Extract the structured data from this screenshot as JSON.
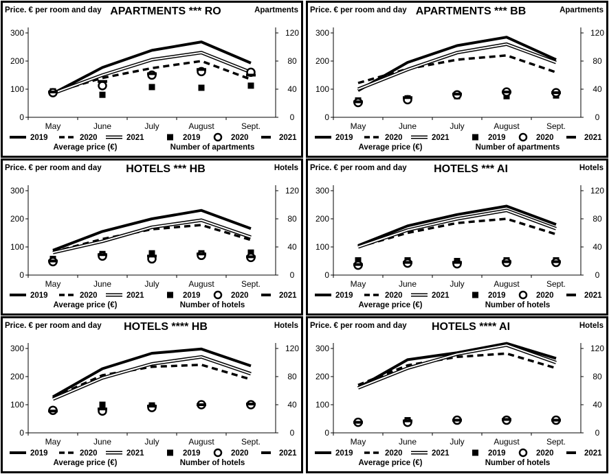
{
  "chart_data": [
    {
      "type": "line",
      "title": "APARTMENTS *** RO",
      "ylabel": "Price. € per room and day",
      "y2label": "Apartments",
      "categories": [
        "May",
        "June",
        "July",
        "August",
        "Sept."
      ],
      "ylim": [
        0,
        300
      ],
      "y2lim": [
        0,
        120
      ],
      "yticks": [
        "0",
        "100",
        "200",
        "300"
      ],
      "y2ticks": [
        "0",
        "40",
        "80",
        "120"
      ],
      "series": [
        {
          "name": "2019",
          "axis": "left",
          "kind": "line",
          "style": "solid-thick",
          "values": [
            85,
            177,
            238,
            268,
            193
          ]
        },
        {
          "name": "2020",
          "axis": "left",
          "kind": "line",
          "style": "dashed",
          "values": [
            88,
            140,
            175,
            200,
            135
          ]
        },
        {
          "name": "2021",
          "axis": "left",
          "kind": "line",
          "style": "double",
          "values": [
            85,
            150,
            205,
            230,
            160
          ]
        },
        {
          "name": "2019",
          "axis": "right",
          "kind": "marker",
          "style": "square",
          "values": [
            37,
            32,
            43,
            42,
            45
          ]
        },
        {
          "name": "2020",
          "axis": "right",
          "kind": "marker",
          "style": "circle",
          "values": [
            35,
            45,
            60,
            65,
            64
          ]
        },
        {
          "name": "2021",
          "axis": "right",
          "kind": "marker",
          "style": "dash",
          "values": [
            36,
            51,
            62,
            68,
            60
          ]
        }
      ],
      "legend": {
        "left_title": "Average price (€)",
        "right_title": "Number of apartments",
        "items": [
          "2019",
          "2020",
          "2021",
          "2019",
          "2020",
          "2021"
        ]
      }
    },
    {
      "type": "line",
      "title": "APARTMENTS *** BB",
      "ylabel": "Price. € per room and day",
      "y2label": "Apartments",
      "categories": [
        "May",
        "June",
        "July",
        "August",
        "Sept."
      ],
      "ylim": [
        0,
        300
      ],
      "y2lim": [
        0,
        120
      ],
      "yticks": [
        "0",
        "100",
        "200",
        "300"
      ],
      "y2ticks": [
        "0",
        "40",
        "80",
        "120"
      ],
      "series": [
        {
          "name": "2019",
          "axis": "left",
          "kind": "line",
          "style": "solid-thick",
          "values": [
            95,
            195,
            255,
            285,
            205
          ]
        },
        {
          "name": "2020",
          "axis": "left",
          "kind": "line",
          "style": "dashed",
          "values": [
            122,
            172,
            205,
            220,
            160
          ]
        },
        {
          "name": "2021",
          "axis": "left",
          "kind": "line",
          "style": "double",
          "values": [
            100,
            170,
            230,
            260,
            195
          ]
        },
        {
          "name": "2019",
          "axis": "right",
          "kind": "marker",
          "style": "square",
          "values": [
            24,
            27,
            30,
            30,
            31
          ]
        },
        {
          "name": "2020",
          "axis": "right",
          "kind": "marker",
          "style": "circle",
          "values": [
            21,
            25,
            32,
            36,
            35
          ]
        },
        {
          "name": "2021",
          "axis": "right",
          "kind": "marker",
          "style": "dash",
          "values": [
            22,
            28,
            33,
            36,
            35
          ]
        }
      ],
      "legend": {
        "left_title": "Average price (€)",
        "right_title": "Number of apartments",
        "items": [
          "2019",
          "2020",
          "2021",
          "2019",
          "2020",
          "2021"
        ]
      }
    },
    {
      "type": "line",
      "title": "HOTELS *** HB",
      "ylabel": "Price. € per room and day",
      "y2label": "Hotels",
      "categories": [
        "May",
        "June",
        "July",
        "August",
        "Sept."
      ],
      "ylim": [
        0,
        300
      ],
      "y2lim": [
        0,
        120
      ],
      "yticks": [
        "0",
        "100",
        "200",
        "300"
      ],
      "y2ticks": [
        "0",
        "40",
        "80",
        "120"
      ],
      "series": [
        {
          "name": "2019",
          "axis": "left",
          "kind": "line",
          "style": "solid-thick",
          "values": [
            88,
            155,
            200,
            230,
            165
          ]
        },
        {
          "name": "2020",
          "axis": "left",
          "kind": "line",
          "style": "dashed",
          "values": [
            82,
            128,
            163,
            178,
            125
          ]
        },
        {
          "name": "2021",
          "axis": "left",
          "kind": "line",
          "style": "double",
          "values": [
            80,
            120,
            170,
            195,
            135
          ]
        },
        {
          "name": "2019",
          "axis": "right",
          "kind": "marker",
          "style": "square",
          "values": [
            23,
            30,
            31,
            31,
            32
          ]
        },
        {
          "name": "2020",
          "axis": "right",
          "kind": "marker",
          "style": "circle",
          "values": [
            19,
            27,
            23,
            28,
            25
          ]
        },
        {
          "name": "2021",
          "axis": "right",
          "kind": "marker",
          "style": "dash",
          "values": [
            20,
            29,
            27,
            30,
            26
          ]
        }
      ],
      "legend": {
        "left_title": "Average price (€)",
        "right_title": "Number of hotels",
        "items": [
          "2019",
          "2020",
          "2021",
          "2019",
          "2020",
          "2021"
        ]
      }
    },
    {
      "type": "line",
      "title": "HOTELS *** AI",
      "ylabel": "Price. € per room and day",
      "y2label": "Hotels",
      "categories": [
        "May",
        "June",
        "July",
        "August",
        "Sept."
      ],
      "ylim": [
        0,
        300
      ],
      "y2lim": [
        0,
        120
      ],
      "yticks": [
        "0",
        "100",
        "200",
        "300"
      ],
      "y2ticks": [
        "0",
        "40",
        "80",
        "120"
      ],
      "series": [
        {
          "name": "2019",
          "axis": "left",
          "kind": "line",
          "style": "solid-thick",
          "values": [
            105,
            175,
            215,
            245,
            180
          ]
        },
        {
          "name": "2020",
          "axis": "left",
          "kind": "line",
          "style": "dashed",
          "values": [
            100,
            150,
            185,
            200,
            145
          ]
        },
        {
          "name": "2021",
          "axis": "left",
          "kind": "line",
          "style": "double",
          "values": [
            100,
            160,
            200,
            230,
            165
          ]
        },
        {
          "name": "2019",
          "axis": "right",
          "kind": "marker",
          "style": "square",
          "values": [
            21,
            21,
            20,
            21,
            21
          ]
        },
        {
          "name": "2020",
          "axis": "right",
          "kind": "marker",
          "style": "circle",
          "values": [
            14,
            17,
            16,
            18,
            18
          ]
        },
        {
          "name": "2021",
          "axis": "right",
          "kind": "marker",
          "style": "dash",
          "values": [
            15,
            18,
            18,
            19,
            19
          ]
        }
      ],
      "legend": {
        "left_title": "Average price (€)",
        "right_title": "Number of hotels",
        "items": [
          "2019",
          "2020",
          "2021",
          "2019",
          "2020",
          "2021"
        ]
      }
    },
    {
      "type": "line",
      "title": "HOTELS **** HB",
      "ylabel": "Price. € per room and day",
      "y2label": "Hotels",
      "categories": [
        "May",
        "June",
        "July",
        "August",
        "Sept."
      ],
      "ylim": [
        0,
        300
      ],
      "y2lim": [
        0,
        120
      ],
      "yticks": [
        "0",
        "100",
        "200",
        "300"
      ],
      "y2ticks": [
        "0",
        "40",
        "80",
        "120"
      ],
      "series": [
        {
          "name": "2019",
          "axis": "left",
          "kind": "line",
          "style": "solid-thick",
          "values": [
            128,
            228,
            283,
            298,
            238
          ]
        },
        {
          "name": "2020",
          "axis": "left",
          "kind": "line",
          "style": "dashed",
          "values": [
            125,
            205,
            235,
            242,
            190
          ]
        },
        {
          "name": "2021",
          "axis": "left",
          "kind": "line",
          "style": "double",
          "values": [
            120,
            195,
            245,
            270,
            210
          ]
        },
        {
          "name": "2019",
          "axis": "right",
          "kind": "marker",
          "style": "square",
          "values": [
            32,
            40,
            39,
            41,
            41
          ]
        },
        {
          "name": "2020",
          "axis": "right",
          "kind": "marker",
          "style": "circle",
          "values": [
            32,
            31,
            36,
            40,
            40
          ]
        },
        {
          "name": "2021",
          "axis": "right",
          "kind": "marker",
          "style": "dash",
          "values": [
            31,
            34,
            38,
            40,
            41
          ]
        }
      ],
      "legend": {
        "left_title": "Average price (€)",
        "right_title": "Number of hotels",
        "items": [
          "2019",
          "2020",
          "2021",
          "2019",
          "2020",
          "2021"
        ]
      }
    },
    {
      "type": "line",
      "title": "HOTELS **** AI",
      "ylabel": "Price. € per room and day",
      "y2label": "Hotels",
      "categories": [
        "May",
        "June",
        "July",
        "August",
        "Sept."
      ],
      "ylim": [
        0,
        300
      ],
      "y2lim": [
        0,
        120
      ],
      "yticks": [
        "0",
        "100",
        "200",
        "300"
      ],
      "y2ticks": [
        "0",
        "40",
        "80",
        "120"
      ],
      "series": [
        {
          "name": "2019",
          "axis": "left",
          "kind": "line",
          "style": "solid-thick",
          "values": [
            160,
            260,
            285,
            318,
            265
          ]
        },
        {
          "name": "2020",
          "axis": "left",
          "kind": "line",
          "style": "dashed",
          "values": [
            170,
            240,
            270,
            282,
            230
          ]
        },
        {
          "name": "2021",
          "axis": "left",
          "kind": "line",
          "style": "double",
          "values": [
            160,
            230,
            280,
            312,
            250
          ]
        },
        {
          "name": "2019",
          "axis": "right",
          "kind": "marker",
          "style": "square",
          "values": [
            16,
            18,
            19,
            19,
            19
          ]
        },
        {
          "name": "2020",
          "axis": "right",
          "kind": "marker",
          "style": "circle",
          "values": [
            15,
            15,
            18,
            18,
            18
          ]
        },
        {
          "name": "2021",
          "axis": "right",
          "kind": "marker",
          "style": "dash",
          "values": [
            15,
            17,
            18,
            19,
            18
          ]
        }
      ],
      "legend": {
        "left_title": "Average price (€)",
        "right_title": "Number of hotels",
        "items": [
          "2019",
          "2020",
          "2021",
          "2019",
          "2020",
          "2021"
        ]
      }
    }
  ]
}
